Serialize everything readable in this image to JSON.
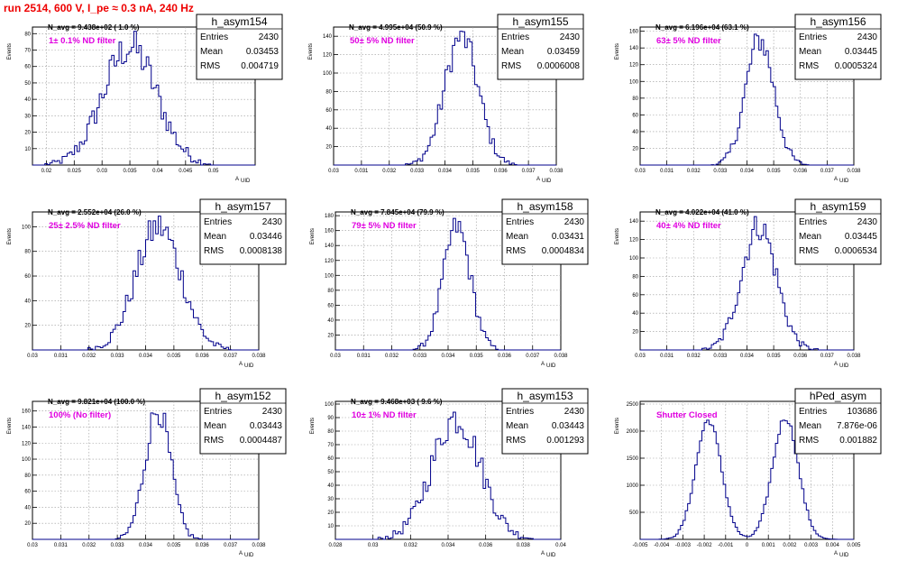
{
  "header": {
    "title": "run 2514,   600 V, I_pe ≈ 0.3 nA, 240 Hz"
  },
  "stats_labels": {
    "entries": "Entries",
    "mean": "Mean",
    "rms": "RMS"
  },
  "y_axis_label": "Events",
  "colors": {
    "histogram": "#00008b",
    "filter_text": "#e000e0",
    "title_text": "#e00000",
    "grid": "#999999"
  },
  "chart_data": [
    {
      "type": "histogram",
      "name": "h_asym154",
      "navg": "N_avg = 9.438e+02 ( 1.0 %)",
      "filter": "1± 0.1% ND filter",
      "entries": "2430",
      "mean": "0.03453",
      "rms": "0.004719",
      "xlabel": "A_UID",
      "ylabel": "Events",
      "xlim": [
        0.0175,
        0.0575
      ],
      "ylim": [
        0,
        84
      ],
      "xticks": [
        "0.02",
        "0.025",
        "0.03",
        "0.035",
        "0.04",
        "0.045",
        "0.05"
      ],
      "yticks": [
        "10",
        "20",
        "30",
        "40",
        "50",
        "60",
        "70",
        "80"
      ],
      "shape": {
        "peaks": [
          {
            "mu": 0.035,
            "sigma": 0.0048,
            "amp": 72
          }
        ]
      }
    },
    {
      "type": "histogram",
      "name": "h_asym155",
      "navg": "N_avg = 4.995e+04 (50.9 %)",
      "filter": "50± 5% ND filter",
      "entries": "2430",
      "mean": "0.03459",
      "rms": "0.0006008",
      "xlabel": "A_UID",
      "ylabel": "Events",
      "xlim": [
        0.03,
        0.038
      ],
      "ylim": [
        0,
        150
      ],
      "xticks": [
        "0.03",
        "0.031",
        "0.032",
        "0.033",
        "0.034",
        "0.035",
        "0.036",
        "0.037",
        "0.038"
      ],
      "yticks": [
        "20",
        "40",
        "60",
        "80",
        "100",
        "120",
        "140"
      ],
      "shape": {
        "peaks": [
          {
            "mu": 0.03459,
            "sigma": 0.0006,
            "amp": 140
          }
        ]
      }
    },
    {
      "type": "histogram",
      "name": "h_asym156",
      "navg": "N_avg = 6.196e+04 (63.1 %)",
      "filter": "63± 5% ND filter",
      "entries": "2430",
      "mean": "0.03445",
      "rms": "0.0005324",
      "xlabel": "A_UID",
      "ylabel": "Events",
      "xlim": [
        0.03,
        0.038
      ],
      "ylim": [
        0,
        165
      ],
      "xticks": [
        "0.03",
        "0.031",
        "0.032",
        "0.033",
        "0.034",
        "0.035",
        "0.036",
        "0.037",
        "0.038"
      ],
      "yticks": [
        "20",
        "40",
        "60",
        "80",
        "100",
        "120",
        "140",
        "160"
      ],
      "shape": {
        "peaks": [
          {
            "mu": 0.03448,
            "sigma": 0.00053,
            "amp": 150
          }
        ]
      }
    },
    {
      "type": "histogram",
      "name": "h_asym157",
      "navg": "N_avg = 2.552e+04 (26.0 %)",
      "filter": "25± 2.5% ND filter",
      "entries": "2430",
      "mean": "0.03446",
      "rms": "0.0008138",
      "xlabel": "A_UID",
      "ylabel": "Events",
      "xlim": [
        0.03,
        0.038
      ],
      "ylim": [
        0,
        112
      ],
      "xticks": [
        "0.03",
        "0.031",
        "0.032",
        "0.033",
        "0.034",
        "0.035",
        "0.036",
        "0.037",
        "0.038"
      ],
      "yticks": [
        "20",
        "40",
        "60",
        "80",
        "100"
      ],
      "shape": {
        "peaks": [
          {
            "mu": 0.03446,
            "sigma": 0.0008,
            "amp": 100
          }
        ]
      }
    },
    {
      "type": "histogram",
      "name": "h_asym158",
      "navg": "N_avg = 7.845e+04 (79.9 %)",
      "filter": "79± 5% ND filter",
      "entries": "2430",
      "mean": "0.03431",
      "rms": "0.0004834",
      "xlabel": "A_UID",
      "ylabel": "Events",
      "xlim": [
        0.03,
        0.038
      ],
      "ylim": [
        0,
        185
      ],
      "xticks": [
        "0.03",
        "0.031",
        "0.032",
        "0.033",
        "0.034",
        "0.035",
        "0.036",
        "0.037",
        "0.038"
      ],
      "yticks": [
        "20",
        "40",
        "60",
        "80",
        "100",
        "120",
        "140",
        "160",
        "180"
      ],
      "shape": {
        "peaks": [
          {
            "mu": 0.03431,
            "sigma": 0.00048,
            "amp": 165
          }
        ]
      }
    },
    {
      "type": "histogram",
      "name": "h_asym159",
      "navg": "N_avg = 4.022e+04 (41.0 %)",
      "filter": "40± 4% ND filter",
      "entries": "2430",
      "mean": "0.03445",
      "rms": "0.0006534",
      "xlabel": "A_UID",
      "ylabel": "Events",
      "xlim": [
        0.03,
        0.038
      ],
      "ylim": [
        0,
        150
      ],
      "xticks": [
        "0.03",
        "0.031",
        "0.032",
        "0.033",
        "0.034",
        "0.035",
        "0.036",
        "0.037",
        "0.038"
      ],
      "yticks": [
        "20",
        "40",
        "60",
        "80",
        "100",
        "120",
        "140"
      ],
      "shape": {
        "peaks": [
          {
            "mu": 0.03445,
            "sigma": 0.00065,
            "amp": 135
          }
        ]
      }
    },
    {
      "type": "histogram",
      "name": "h_asym152",
      "navg": "N_avg = 9.821e+04 (100.0 %)",
      "filter": "100% (No filter)",
      "entries": "2430",
      "mean": "0.03443",
      "rms": "0.0004487",
      "xlabel": "A_UID",
      "ylabel": "Events",
      "xlim": [
        0.03,
        0.038
      ],
      "ylim": [
        0,
        172
      ],
      "xticks": [
        "0.03",
        "0.031",
        "0.032",
        "0.033",
        "0.034",
        "0.035",
        "0.036",
        "0.037",
        "0.038"
      ],
      "yticks": [
        "20",
        "40",
        "60",
        "80",
        "100",
        "120",
        "140",
        "160"
      ],
      "shape": {
        "peaks": [
          {
            "mu": 0.03443,
            "sigma": 0.00045,
            "amp": 162
          }
        ]
      }
    },
    {
      "type": "histogram",
      "name": "h_asym153",
      "navg": "N_avg = 9.468e+03 ( 9.6 %)",
      "filter": "10± 1% ND filter",
      "entries": "2430",
      "mean": "0.03443",
      "rms": "0.001293",
      "xlabel": "A_UID",
      "ylabel": "Events",
      "xlim": [
        0.028,
        0.04
      ],
      "ylim": [
        0,
        102
      ],
      "xticks": [
        "0.028",
        "0.03",
        "0.032",
        "0.034",
        "0.036",
        "0.038",
        "0.04"
      ],
      "yticks": [
        "10",
        "20",
        "30",
        "40",
        "50",
        "60",
        "70",
        "80",
        "90",
        "100"
      ],
      "shape": {
        "peaks": [
          {
            "mu": 0.03443,
            "sigma": 0.0013,
            "amp": 90
          }
        ]
      }
    },
    {
      "type": "histogram",
      "name": "hPed_asym",
      "navg": "",
      "filter": "Shutter Closed",
      "entries": "103686",
      "mean": "7.876e-06",
      "rms": "0.001882",
      "xlabel": "A_UID",
      "ylabel": "Events",
      "xlim": [
        -0.005,
        0.005
      ],
      "ylim": [
        0,
        2550
      ],
      "xticks": [
        "-0.005",
        "-0.004",
        "-0.003",
        "-0.002",
        "-0.001",
        "0",
        "0.001",
        "0.002",
        "0.003",
        "0.004",
        "0.005"
      ],
      "yticks": [
        "500",
        "1000",
        "1500",
        "2000",
        "2500"
      ],
      "shape": {
        "peaks": [
          {
            "mu": -0.0018,
            "sigma": 0.0006,
            "amp": 2200
          },
          {
            "mu": 0.0018,
            "sigma": 0.0006,
            "amp": 2250
          }
        ]
      }
    }
  ]
}
